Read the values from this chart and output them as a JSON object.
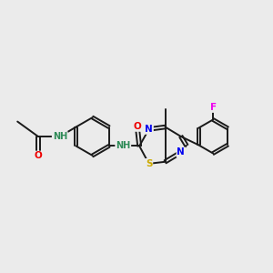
{
  "bg_color": "#ebebeb",
  "bond_color": "#1a1a1a",
  "atom_colors": {
    "N": "#0000ee",
    "O": "#ee0000",
    "S": "#ccaa00",
    "F": "#ee00ee",
    "NH": "#2e8b57",
    "C": "#1a1a1a"
  },
  "figsize": [
    3.0,
    3.0
  ],
  "dpi": 100,
  "lw": 1.4,
  "fs": 7.0
}
